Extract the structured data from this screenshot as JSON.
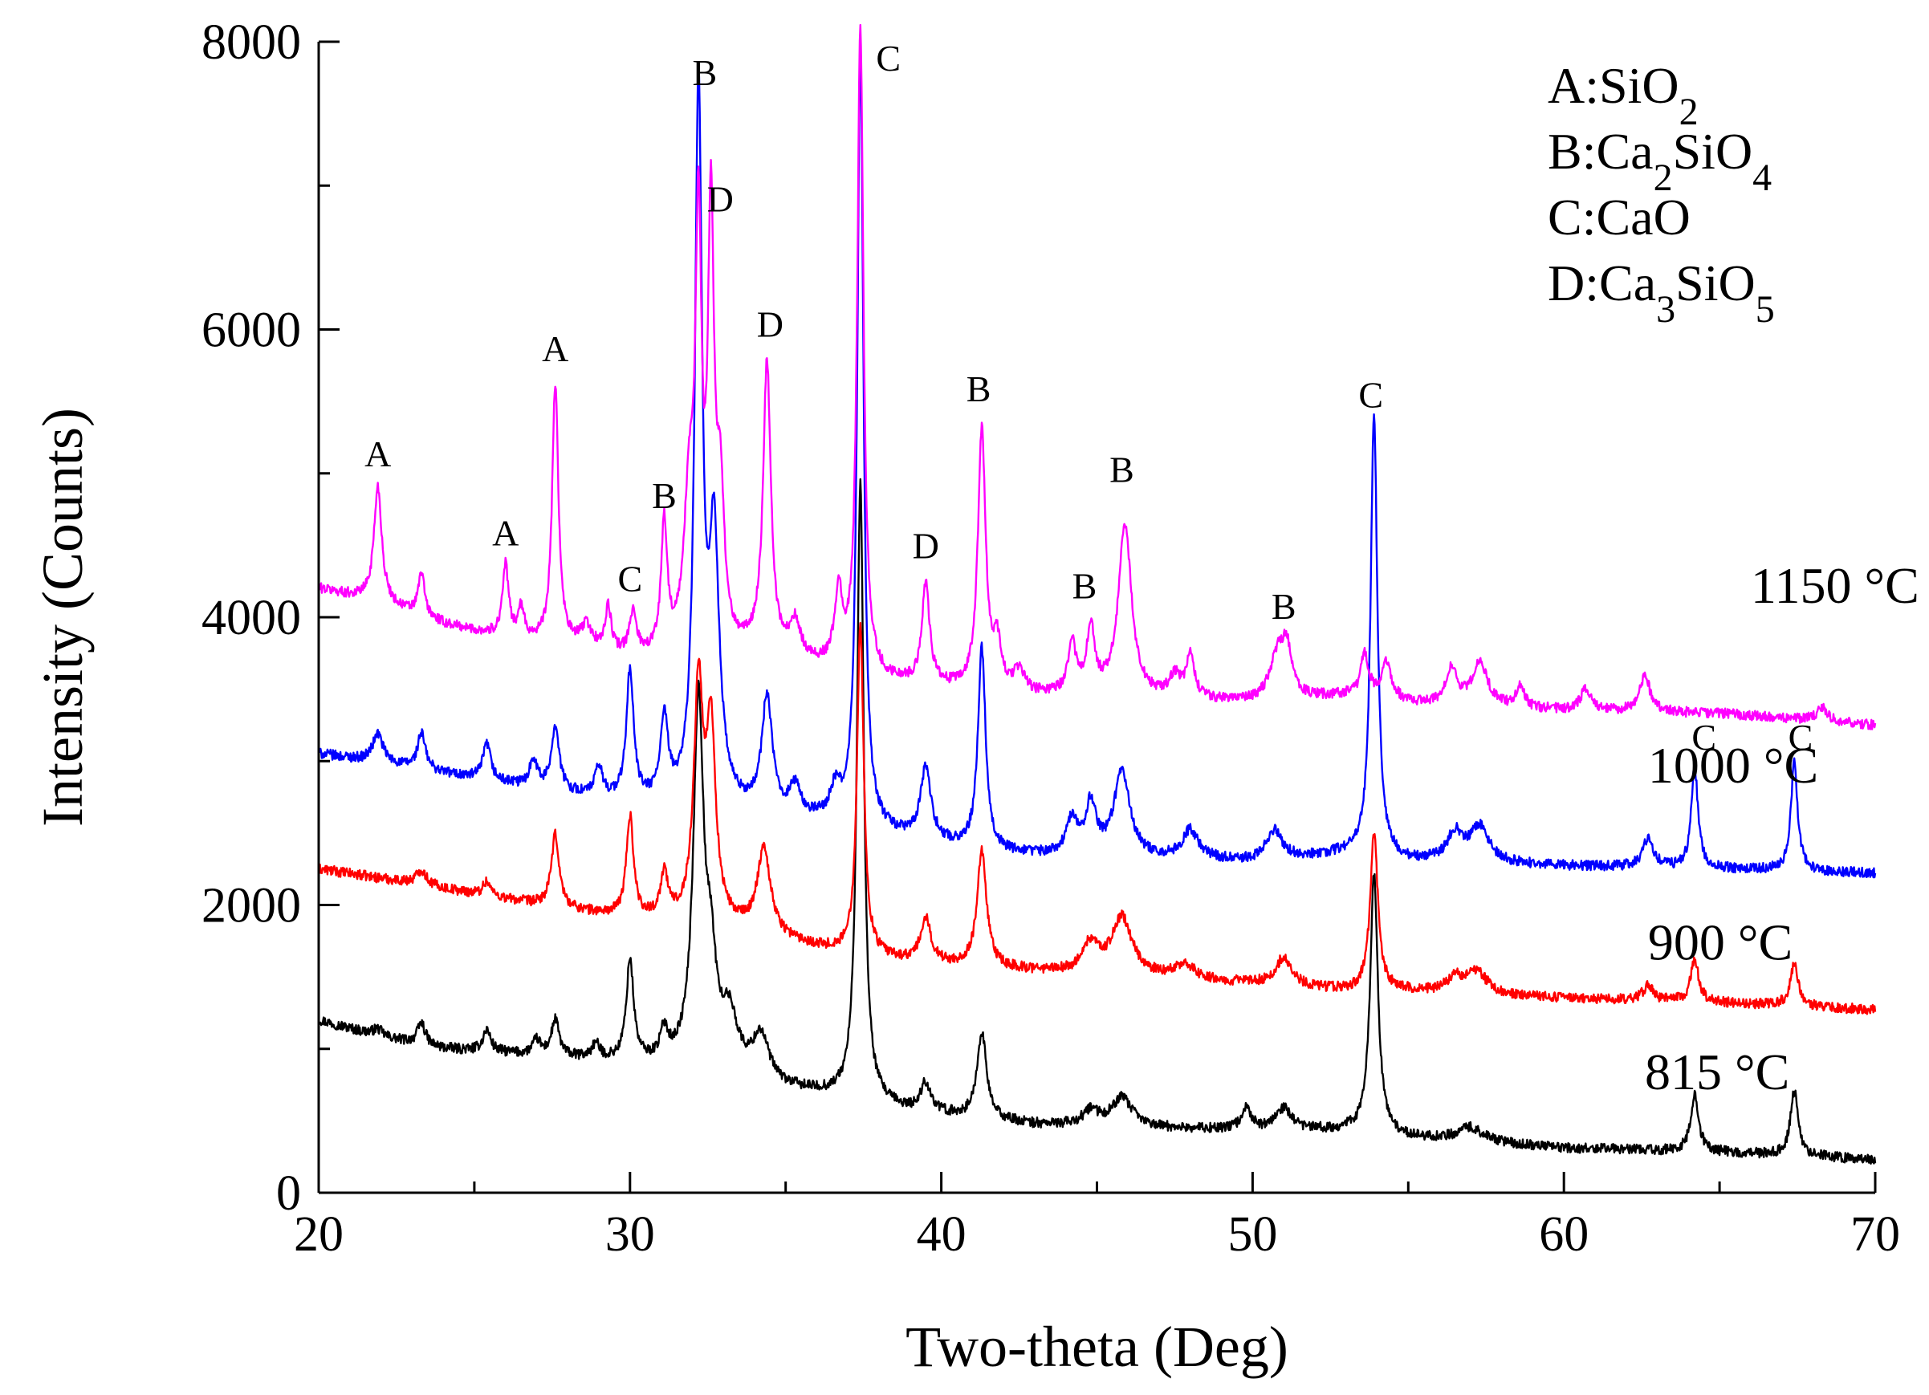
{
  "chart_data": {
    "type": "line",
    "title": "",
    "xlabel": "Two-theta (Deg)",
    "ylabel": "Intensity (Counts)",
    "xlim": [
      20,
      70
    ],
    "ylim": [
      0,
      8000
    ],
    "xticks": [
      20,
      30,
      40,
      50,
      60,
      70
    ],
    "yticks": [
      0,
      2000,
      4000,
      6000,
      8000
    ],
    "legend": {
      "position": "top-right",
      "entries": [
        {
          "letter": "A",
          "formula": [
            [
              "SiO",
              ""
            ],
            [
              "2",
              "sub"
            ]
          ]
        },
        {
          "letter": "B",
          "formula": [
            [
              "Ca",
              ""
            ],
            [
              "2",
              "sub"
            ],
            [
              "SiO",
              ""
            ],
            [
              "4",
              "sub"
            ]
          ]
        },
        {
          "letter": "C",
          "formula": [
            [
              "CaO",
              ""
            ]
          ]
        },
        {
          "letter": "D",
          "formula": [
            [
              "Ca",
              ""
            ],
            [
              "3",
              "sub"
            ],
            [
              "SiO",
              ""
            ],
            [
              "5",
              "sub"
            ]
          ]
        }
      ]
    },
    "series": [
      {
        "name": "815 °C",
        "color": "#000000",
        "baseline": [
          [
            20,
            1200
          ],
          [
            22,
            1080
          ],
          [
            24,
            1000
          ],
          [
            27,
            950
          ],
          [
            30,
            900
          ],
          [
            33,
            850
          ],
          [
            35,
            720
          ],
          [
            37,
            650
          ],
          [
            39,
            560
          ],
          [
            43,
            470
          ],
          [
            50,
            430
          ],
          [
            53,
            430
          ],
          [
            55,
            380
          ],
          [
            60,
            310
          ],
          [
            65,
            280
          ],
          [
            70,
            230
          ]
        ],
        "peaks": [
          [
            21.9,
            50,
            0.2
          ],
          [
            23.3,
            150,
            0.15
          ],
          [
            25.4,
            150,
            0.15
          ],
          [
            27.0,
            100,
            0.15
          ],
          [
            27.6,
            250,
            0.15
          ],
          [
            28.9,
            100,
            0.15
          ],
          [
            30.0,
            700,
            0.14
          ],
          [
            31.1,
            200,
            0.15
          ],
          [
            32.2,
            2500,
            0.2
          ],
          [
            32.6,
            600,
            0.2
          ],
          [
            33.2,
            350,
            0.3
          ],
          [
            34.2,
            300,
            0.3
          ],
          [
            37.4,
            4300,
            0.13
          ],
          [
            39.5,
            200,
            0.2
          ],
          [
            41.3,
            600,
            0.18
          ],
          [
            44.8,
            100,
            0.3
          ],
          [
            45.8,
            200,
            0.4
          ],
          [
            49.8,
            150,
            0.2
          ],
          [
            51.0,
            150,
            0.3
          ],
          [
            53.9,
            1800,
            0.15
          ],
          [
            57.0,
            100,
            0.5
          ],
          [
            64.2,
            400,
            0.15
          ],
          [
            67.4,
            450,
            0.15
          ]
        ]
      },
      {
        "name": "900 °C",
        "color": "#ff0000",
        "baseline": [
          [
            20,
            2250
          ],
          [
            23,
            2150
          ],
          [
            27,
            2000
          ],
          [
            30,
            1900
          ],
          [
            33,
            1850
          ],
          [
            35,
            1750
          ],
          [
            37,
            1650
          ],
          [
            39,
            1600
          ],
          [
            42,
            1550
          ],
          [
            50,
            1450
          ],
          [
            53,
            1400
          ],
          [
            55,
            1400
          ],
          [
            60,
            1350
          ],
          [
            65,
            1320
          ],
          [
            70,
            1270
          ]
        ],
        "peaks": [
          [
            23.3,
            100,
            0.2
          ],
          [
            25.4,
            100,
            0.15
          ],
          [
            27.6,
            500,
            0.15
          ],
          [
            30.0,
            700,
            0.14
          ],
          [
            31.1,
            300,
            0.15
          ],
          [
            32.2,
            1600,
            0.18
          ],
          [
            32.6,
            1300,
            0.18
          ],
          [
            34.3,
            600,
            0.25
          ],
          [
            37.4,
            2300,
            0.13
          ],
          [
            39.5,
            300,
            0.2
          ],
          [
            41.3,
            800,
            0.18
          ],
          [
            44.8,
            200,
            0.3
          ],
          [
            45.8,
            400,
            0.4
          ],
          [
            47.8,
            100,
            0.4
          ],
          [
            51.0,
            200,
            0.3
          ],
          [
            53.9,
            1100,
            0.15
          ],
          [
            56.5,
            100,
            0.3
          ],
          [
            57.2,
            150,
            0.4
          ],
          [
            62.7,
            100,
            0.2
          ],
          [
            64.2,
            300,
            0.15
          ],
          [
            67.4,
            300,
            0.15
          ]
        ]
      },
      {
        "name": "1000 °C",
        "color": "#0000ff",
        "baseline": [
          [
            20,
            3050
          ],
          [
            23,
            2950
          ],
          [
            27,
            2800
          ],
          [
            30,
            2700
          ],
          [
            33,
            2650
          ],
          [
            35,
            2600
          ],
          [
            37,
            2550
          ],
          [
            39,
            2450
          ],
          [
            42,
            2350
          ],
          [
            50,
            2300
          ],
          [
            53,
            2350
          ],
          [
            55,
            2300
          ],
          [
            60,
            2270
          ],
          [
            65,
            2250
          ],
          [
            70,
            2220
          ]
        ],
        "peaks": [
          [
            21.9,
            200,
            0.2
          ],
          [
            23.3,
            250,
            0.15
          ],
          [
            25.4,
            250,
            0.15
          ],
          [
            26.9,
            200,
            0.15
          ],
          [
            27.6,
            450,
            0.15
          ],
          [
            29.0,
            200,
            0.15
          ],
          [
            30.0,
            900,
            0.14
          ],
          [
            31.1,
            550,
            0.15
          ],
          [
            32.2,
            4900,
            0.14
          ],
          [
            32.7,
            1800,
            0.2
          ],
          [
            34.4,
            800,
            0.2
          ],
          [
            35.3,
            200,
            0.2
          ],
          [
            36.6,
            200,
            0.2
          ],
          [
            37.4,
            5400,
            0.12
          ],
          [
            39.5,
            500,
            0.2
          ],
          [
            41.3,
            1400,
            0.15
          ],
          [
            44.2,
            250,
            0.2
          ],
          [
            44.8,
            350,
            0.2
          ],
          [
            45.8,
            600,
            0.3
          ],
          [
            48.0,
            200,
            0.3
          ],
          [
            50.7,
            200,
            0.3
          ],
          [
            53.9,
            3100,
            0.13
          ],
          [
            56.5,
            200,
            0.3
          ],
          [
            57.3,
            250,
            0.35
          ],
          [
            62.7,
            200,
            0.2
          ],
          [
            64.2,
            700,
            0.13
          ],
          [
            67.4,
            750,
            0.13
          ]
        ]
      },
      {
        "name": "1150 °C",
        "color": "#ff00ff",
        "baseline": [
          [
            20,
            4200
          ],
          [
            22,
            4100
          ],
          [
            24,
            3950
          ],
          [
            26,
            3850
          ],
          [
            28,
            3800
          ],
          [
            30,
            3700
          ],
          [
            32,
            3700
          ],
          [
            34,
            3750
          ],
          [
            36,
            3650
          ],
          [
            38,
            3550
          ],
          [
            40,
            3500
          ],
          [
            43,
            3450
          ],
          [
            45,
            3450
          ],
          [
            50,
            3400
          ],
          [
            53,
            3450
          ],
          [
            55,
            3400
          ],
          [
            60,
            3350
          ],
          [
            65,
            3330
          ],
          [
            70,
            3250
          ]
        ],
        "peaks": [
          [
            21.9,
            800,
            0.15
          ],
          [
            23.3,
            300,
            0.12
          ],
          [
            26.0,
            500,
            0.12
          ],
          [
            26.5,
            200,
            0.12
          ],
          [
            27.6,
            1800,
            0.12
          ],
          [
            28.6,
            150,
            0.2
          ],
          [
            29.3,
            300,
            0.12
          ],
          [
            30.1,
            300,
            0.14
          ],
          [
            31.1,
            900,
            0.12
          ],
          [
            31.9,
            1000,
            0.2
          ],
          [
            32.2,
            2800,
            0.12
          ],
          [
            32.6,
            2900,
            0.12
          ],
          [
            32.9,
            1000,
            0.15
          ],
          [
            34.4,
            2000,
            0.15
          ],
          [
            35.3,
            250,
            0.2
          ],
          [
            36.7,
            500,
            0.15
          ],
          [
            37.4,
            4500,
            0.12
          ],
          [
            39.5,
            700,
            0.15
          ],
          [
            41.3,
            1800,
            0.15
          ],
          [
            41.8,
            300,
            0.15
          ],
          [
            42.5,
            150,
            0.2
          ],
          [
            44.2,
            350,
            0.15
          ],
          [
            44.8,
            450,
            0.15
          ],
          [
            45.9,
            1200,
            0.25
          ],
          [
            47.5,
            150,
            0.2
          ],
          [
            48.0,
            300,
            0.15
          ],
          [
            50.8,
            300,
            0.3
          ],
          [
            51.1,
            300,
            0.2
          ],
          [
            53.6,
            300,
            0.15
          ],
          [
            54.3,
            250,
            0.2
          ],
          [
            56.4,
            250,
            0.2
          ],
          [
            57.3,
            300,
            0.3
          ],
          [
            58.6,
            150,
            0.15
          ],
          [
            60.7,
            150,
            0.2
          ],
          [
            62.6,
            250,
            0.2
          ],
          [
            68.3,
            100,
            0.2
          ]
        ]
      }
    ],
    "temperature_labels": [
      {
        "text": "1150 °C",
        "x": 66.0,
        "y": 4100
      },
      {
        "text": "1000 °C",
        "x": 62.7,
        "y": 2850
      },
      {
        "text": "900 °C",
        "x": 62.7,
        "y": 1620
      },
      {
        "text": "815 °C",
        "x": 62.6,
        "y": 720
      }
    ],
    "annotations": [
      {
        "text": "A",
        "x": 21.9,
        "y": 5050
      },
      {
        "text": "A",
        "x": 26.0,
        "y": 4500
      },
      {
        "text": "A",
        "x": 27.6,
        "y": 5780
      },
      {
        "text": "C",
        "x": 30.0,
        "y": 4180
      },
      {
        "text": "B",
        "x": 31.1,
        "y": 4760
      },
      {
        "text": "B",
        "x": 32.4,
        "y": 7700
      },
      {
        "text": "D",
        "x": 32.9,
        "y": 6820
      },
      {
        "text": "D",
        "x": 34.5,
        "y": 5950
      },
      {
        "text": "C",
        "x": 38.3,
        "y": 7800
      },
      {
        "text": "D",
        "x": 39.5,
        "y": 4410
      },
      {
        "text": "B",
        "x": 41.2,
        "y": 5500
      },
      {
        "text": "B",
        "x": 44.6,
        "y": 4130
      },
      {
        "text": "B",
        "x": 45.8,
        "y": 4940
      },
      {
        "text": "B",
        "x": 51.0,
        "y": 3990
      },
      {
        "text": "C",
        "x": 53.8,
        "y": 5460
      },
      {
        "text": "C",
        "x": 64.5,
        "y": 3080
      },
      {
        "text": "C",
        "x": 67.6,
        "y": 3080
      }
    ]
  }
}
